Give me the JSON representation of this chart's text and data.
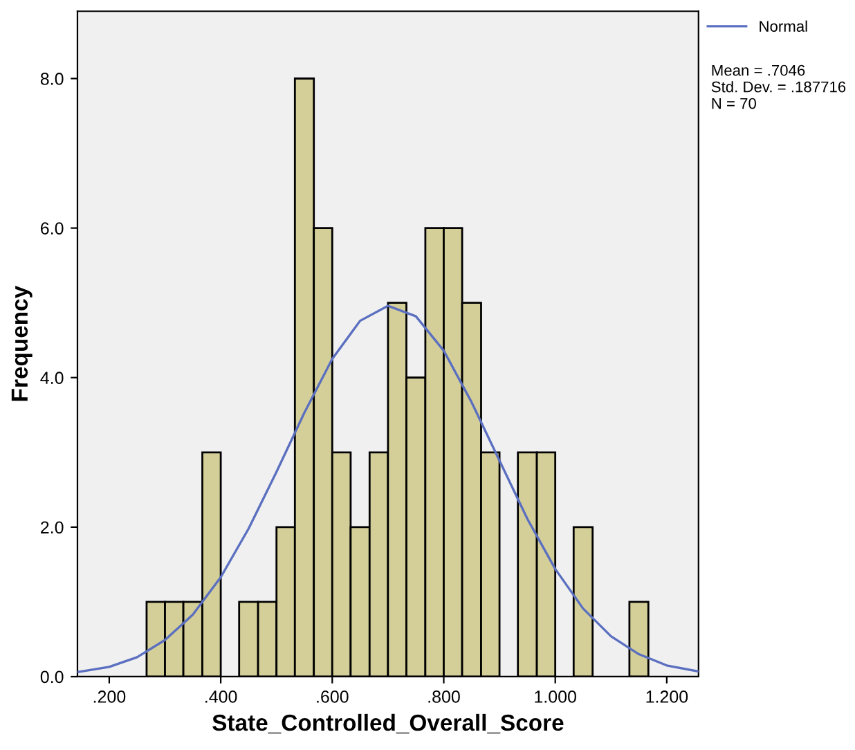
{
  "chart_data": {
    "type": "histogram",
    "xlabel": "State_Controlled_Overall_Score",
    "ylabel": "Frequency",
    "bins": [
      0.267,
      0.3,
      0.333,
      0.367,
      0.4,
      0.433,
      0.467,
      0.5,
      0.533,
      0.567,
      0.6,
      0.633,
      0.667,
      0.7,
      0.733,
      0.767,
      0.8,
      0.833,
      0.867,
      0.9,
      0.933,
      0.967,
      1.0,
      1.033,
      1.067,
      1.133,
      1.167
    ],
    "values": [
      1,
      1,
      1,
      3,
      0,
      1,
      1,
      2,
      8,
      6,
      3,
      2,
      3,
      5,
      4,
      6,
      6,
      5,
      3,
      0,
      3,
      3,
      0,
      2,
      0,
      1
    ],
    "color": "#d4cf98",
    "series": [
      {
        "name": "Normal",
        "type": "line",
        "color": "#5b6fc0",
        "x": [
          0.143,
          0.2,
          0.25,
          0.3,
          0.35,
          0.4,
          0.45,
          0.5,
          0.55,
          0.6,
          0.65,
          0.7,
          0.75,
          0.8,
          0.85,
          0.9,
          0.95,
          1.0,
          1.05,
          1.1,
          1.15,
          1.2,
          1.257
        ],
        "values": [
          0.06,
          0.13,
          0.26,
          0.49,
          0.83,
          1.33,
          1.98,
          2.74,
          3.53,
          4.25,
          4.76,
          4.96,
          4.82,
          4.36,
          3.67,
          2.89,
          2.11,
          1.44,
          0.91,
          0.54,
          0.3,
          0.15,
          0.07
        ]
      }
    ],
    "xlim": [
      0.143,
      1.257
    ],
    "ylim": [
      0,
      8.9
    ],
    "xticks": [
      {
        "value": 0.2,
        "label": ".200"
      },
      {
        "value": 0.4,
        "label": ".400"
      },
      {
        "value": 0.6,
        "label": ".600"
      },
      {
        "value": 0.8,
        "label": ".800"
      },
      {
        "value": 1.0,
        "label": "1.000"
      },
      {
        "value": 1.2,
        "label": "1.200"
      }
    ],
    "yticks": [
      {
        "value": 0,
        "label": "0.0"
      },
      {
        "value": 2,
        "label": "2.0"
      },
      {
        "value": 4,
        "label": "4.0"
      },
      {
        "value": 6,
        "label": "6.0"
      },
      {
        "value": 8,
        "label": "8.0"
      }
    ],
    "annotations": [
      "Mean = .7046\nStd. Dev. = .187716\nN = 70"
    ],
    "legend": "top right",
    "grid": false,
    "marker": "none",
    "line_style": "solid"
  }
}
